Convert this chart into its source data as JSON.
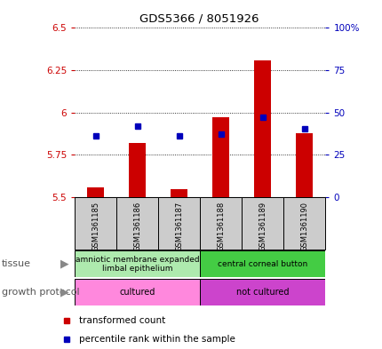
{
  "title": "GDS5366 / 8051926",
  "samples": [
    "GSM1361185",
    "GSM1361186",
    "GSM1361187",
    "GSM1361188",
    "GSM1361189",
    "GSM1361190"
  ],
  "red_values": [
    5.56,
    5.82,
    5.55,
    5.97,
    6.31,
    5.88
  ],
  "blue_values": [
    5.86,
    5.92,
    5.86,
    5.875,
    5.975,
    5.905
  ],
  "ylim_left": [
    5.5,
    6.5
  ],
  "ylim_right": [
    0,
    100
  ],
  "yticks_left": [
    5.5,
    5.75,
    6.0,
    6.25,
    6.5
  ],
  "yticks_right": [
    0,
    25,
    50,
    75,
    100
  ],
  "ytick_labels_left": [
    "5.5",
    "5.75",
    "6",
    "6.25",
    "6.5"
  ],
  "ytick_labels_right": [
    "0",
    "25",
    "50",
    "75",
    "100%"
  ],
  "tissue_groups": [
    {
      "label": "amniotic membrane expanded\nlimbal epithelium",
      "start": 0,
      "end": 3,
      "color": "#aeeaae"
    },
    {
      "label": "central corneal button",
      "start": 3,
      "end": 6,
      "color": "#44cc44"
    }
  ],
  "growth_groups": [
    {
      "label": "cultured",
      "start": 0,
      "end": 3,
      "color": "#ff88dd"
    },
    {
      "label": "not cultured",
      "start": 3,
      "end": 6,
      "color": "#cc44cc"
    }
  ],
  "bar_color": "#cc0000",
  "dot_color": "#0000bb",
  "grid_color": "#000000",
  "sample_bg": "#cccccc",
  "title_color": "#000000",
  "left_axis_color": "#cc0000",
  "right_axis_color": "#0000bb",
  "bar_width": 0.4,
  "dot_size": 5
}
